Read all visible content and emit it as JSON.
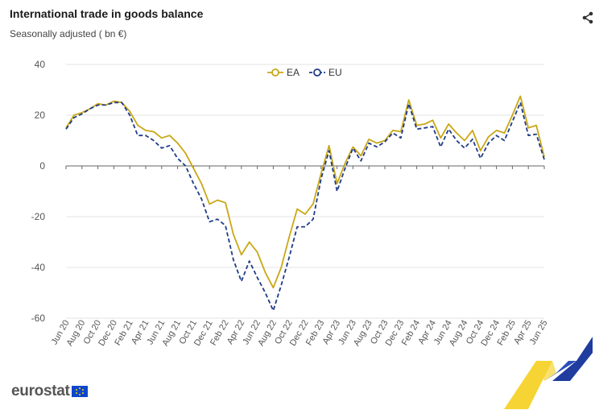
{
  "header": {
    "title": "International trade in goods balance",
    "subtitle": "Seasonally adjusted ( bn €)"
  },
  "footer": {
    "logo_text": "eurostat"
  },
  "chart_data": {
    "type": "line",
    "title": "International trade in goods balance",
    "subtitle": "Seasonally adjusted ( bn €)",
    "xlabel": "",
    "ylabel": "",
    "ylim": [
      -60,
      40
    ],
    "yticks": [
      40,
      20,
      0,
      -20,
      -40,
      -60
    ],
    "grid": "horizontal",
    "legend_position": "top-center",
    "x_tick_labels": [
      "Jun 20",
      "Aug 20",
      "Oct 20",
      "Dec 20",
      "Feb 21",
      "Apr 21",
      "Jun 21",
      "Aug 21",
      "Oct 21",
      "Dec 21",
      "Feb 22",
      "Apr 22",
      "Jun 22",
      "Aug 22",
      "Oct 22",
      "Dec 22",
      "Feb 23",
      "Apr 23",
      "Jun 23",
      "Aug 23",
      "Oct 23",
      "Dec 23",
      "Feb 24",
      "Apr 24",
      "Jun 24",
      "Aug 24",
      "Oct 24",
      "Dec 24",
      "Feb 25",
      "Apr 25",
      "Jun 25"
    ],
    "x": [
      "Jun 20",
      "Jul 20",
      "Aug 20",
      "Sep 20",
      "Oct 20",
      "Nov 20",
      "Dec 20",
      "Jan 21",
      "Feb 21",
      "Mar 21",
      "Apr 21",
      "May 21",
      "Jun 21",
      "Jul 21",
      "Aug 21",
      "Sep 21",
      "Oct 21",
      "Nov 21",
      "Dec 21",
      "Jan 22",
      "Feb 22",
      "Mar 22",
      "Apr 22",
      "May 22",
      "Jun 22",
      "Jul 22",
      "Aug 22",
      "Sep 22",
      "Oct 22",
      "Nov 22",
      "Dec 22",
      "Jan 23",
      "Feb 23",
      "Mar 23",
      "Apr 23",
      "May 23",
      "Jun 23",
      "Jul 23",
      "Aug 23",
      "Sep 23",
      "Oct 23",
      "Nov 23",
      "Dec 23",
      "Jan 24",
      "Feb 24",
      "Mar 24",
      "Apr 24",
      "May 24",
      "Jun 24",
      "Jul 24",
      "Aug 24",
      "Sep 24",
      "Oct 24",
      "Nov 24",
      "Dec 24",
      "Jan 25",
      "Feb 25",
      "Mar 25",
      "Apr 25",
      "May 25",
      "Jun 25"
    ],
    "series": [
      {
        "name": "EA",
        "color": "#c9a716",
        "dash": "solid",
        "values": [
          15,
          20,
          21,
          22.5,
          24.5,
          24,
          25.5,
          25,
          21.5,
          16,
          14,
          13.5,
          11,
          12,
          9,
          5,
          -1,
          -7,
          -15,
          -13.5,
          -14.5,
          -27,
          -35,
          -30,
          -34,
          -42,
          -48,
          -40,
          -28,
          -17,
          -19,
          -15,
          -3,
          8,
          -7,
          1,
          7.5,
          4,
          10.5,
          9,
          10,
          14,
          13.5,
          26,
          16,
          16.5,
          18,
          11,
          16.5,
          13,
          10,
          14,
          6,
          11.5,
          14,
          13,
          20,
          27.5,
          15,
          16,
          3.5
        ]
      },
      {
        "name": "EU",
        "color": "#1f3c88",
        "dash": "dashed",
        "values": [
          14.5,
          19,
          20.5,
          22.5,
          24,
          24,
          25,
          25,
          20,
          12,
          12,
          10,
          7,
          8,
          3,
          0,
          -7,
          -13,
          -22,
          -21,
          -23.5,
          -37,
          -45.5,
          -37.5,
          -44,
          -50,
          -57,
          -47,
          -36,
          -24,
          -24,
          -21,
          -5,
          6,
          -10,
          -1,
          7,
          2,
          9,
          7.5,
          9.5,
          13,
          11,
          24.5,
          14.5,
          15,
          15.5,
          7.5,
          14.5,
          10,
          7,
          10.5,
          3,
          9,
          12,
          10,
          17.5,
          25,
          12,
          12.5,
          2.5
        ]
      }
    ]
  }
}
